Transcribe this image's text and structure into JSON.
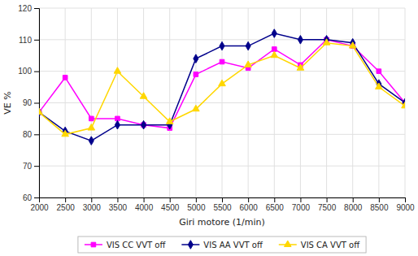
{
  "chart_data": {
    "type": "line",
    "xlabel": "Giri motore (1/min)",
    "ylabel": "VE %",
    "x": [
      2000,
      2500,
      3000,
      3500,
      4000,
      4500,
      5000,
      5500,
      6000,
      6500,
      7000,
      7500,
      8000,
      8500,
      9000
    ],
    "series": [
      {
        "name": "VIS CC VVT off",
        "color": "#ff00ff",
        "marker": "square",
        "values": [
          87,
          98,
          85,
          85,
          83,
          82,
          99,
          103,
          101,
          107,
          102,
          110,
          108,
          100,
          90
        ]
      },
      {
        "name": "VIS AA VVT off",
        "color": "#00008b",
        "marker": "diamond",
        "values": [
          87,
          81,
          78,
          83,
          83,
          83,
          104,
          108,
          108,
          112,
          110,
          110,
          109,
          96,
          90
        ]
      },
      {
        "name": "VIS CA VVT off",
        "color": "#ffd700",
        "marker": "triangle",
        "values": [
          87,
          80,
          82,
          100,
          92,
          84,
          88,
          96,
          102,
          105,
          101,
          109,
          108,
          95,
          89
        ]
      }
    ],
    "xlim": [
      2000,
      9000
    ],
    "ylim": [
      60,
      120
    ],
    "xticks": [
      2000,
      2500,
      3000,
      3500,
      4000,
      4500,
      5000,
      5500,
      6000,
      6500,
      7000,
      7500,
      8000,
      8500,
      9000
    ],
    "yticks": [
      60,
      70,
      80,
      90,
      100,
      110,
      120
    ],
    "grid": true,
    "legend": "bottom"
  }
}
